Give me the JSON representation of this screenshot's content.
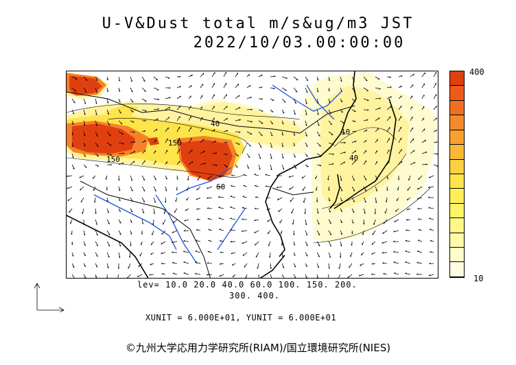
{
  "title": {
    "line1": "U-V&Dust total m/s&ug/m3 JST",
    "line2": "2022/10/03.00:00:00"
  },
  "colorbar": {
    "max_label": "400",
    "min_label": "10",
    "colors": [
      "#e04010",
      "#f05a18",
      "#f07022",
      "#f58a2a",
      "#f8a030",
      "#fbb838",
      "#fcd040",
      "#fde44a",
      "#feee58",
      "#fff466",
      "#fff888",
      "#fffaa8",
      "#fffcc8",
      "#fffde0"
    ]
  },
  "levels": {
    "line1": "lev= 10.0 20.0 40.0 60.0 100. 150. 200.",
    "line2": "300. 400."
  },
  "units": "XUNIT = 6.000E+01, YUNIT = 6.000E+01",
  "copyright": "©九州大学応用力学研究所(RIAM)/国立環境研究所(NIES)",
  "map_labels": {
    "contour_40a": "40",
    "contour_150a": "150",
    "contour_150b": "150",
    "contour_40b": "40",
    "contour_60": "60",
    "contour_10": "10"
  },
  "palette": {
    "heavy": "#e04010",
    "orange": "#f5822a",
    "yellow": "#fde44a",
    "light": "#fff6a0",
    "pale": "#fffbd0",
    "rivers": "#2050e0",
    "coast": "#000000"
  }
}
